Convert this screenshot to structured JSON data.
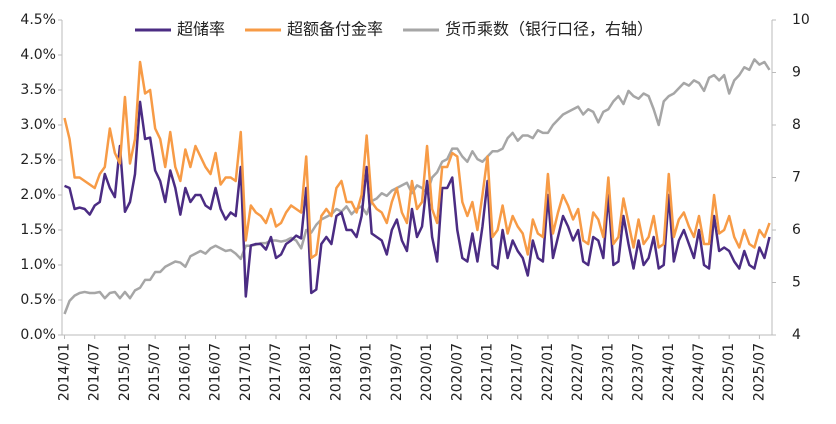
{
  "chart_data": {
    "type": "line",
    "categories": [
      "2014/01",
      null,
      null,
      null,
      null,
      null,
      "2014/07",
      null,
      null,
      null,
      null,
      null,
      "2015/01",
      null,
      null,
      null,
      null,
      null,
      "2015/07",
      null,
      null,
      null,
      null,
      null,
      "2016/01",
      null,
      null,
      null,
      null,
      null,
      "2016/07",
      null,
      null,
      null,
      null,
      null,
      "2017/01",
      null,
      null,
      null,
      null,
      null,
      "2017/07",
      null,
      null,
      null,
      null,
      null,
      "2018/01",
      null,
      null,
      null,
      null,
      null,
      "2018/07",
      null,
      null,
      null,
      null,
      null,
      "2019/01",
      null,
      null,
      null,
      null,
      null,
      "2019/07",
      null,
      null,
      null,
      null,
      null,
      "2020/01",
      null,
      null,
      null,
      null,
      null,
      "2020/07",
      null,
      null,
      null,
      null,
      null,
      "2021/01",
      null,
      null,
      null,
      null,
      null,
      "2021/07",
      null,
      null,
      null,
      null,
      null,
      "2022/01",
      null,
      null,
      null,
      null,
      null,
      "2022/07",
      null,
      null,
      null,
      null,
      null,
      "2023/01",
      null,
      null,
      null,
      null,
      null,
      "2023/07",
      null,
      null,
      null,
      null,
      null,
      "2024/01",
      null,
      null,
      null,
      null,
      null,
      "2024/07",
      null,
      null,
      null,
      null,
      null,
      "2025/01",
      null,
      null,
      null,
      null,
      null,
      "2025/07",
      null,
      null
    ],
    "series": [
      {
        "name": "超储率",
        "color": "#4b2c83",
        "values": [
          2.13,
          2.1,
          1.8,
          1.82,
          1.8,
          1.72,
          1.85,
          1.9,
          2.3,
          2.1,
          1.97,
          2.7,
          1.76,
          1.9,
          2.3,
          3.33,
          2.8,
          2.82,
          2.35,
          2.2,
          1.9,
          2.35,
          2.1,
          1.72,
          2.1,
          1.9,
          2.0,
          2.0,
          1.85,
          1.8,
          2.1,
          1.8,
          1.65,
          1.75,
          1.7,
          2.4,
          0.55,
          1.28,
          1.3,
          1.3,
          1.22,
          1.4,
          1.1,
          1.15,
          1.3,
          1.35,
          1.42,
          1.38,
          2.1,
          0.6,
          0.65,
          1.3,
          1.4,
          1.3,
          1.7,
          1.75,
          1.5,
          1.5,
          1.4,
          1.7,
          2.4,
          1.45,
          1.4,
          1.35,
          1.15,
          1.5,
          1.65,
          1.35,
          1.2,
          1.8,
          1.4,
          1.55,
          2.2,
          1.4,
          1.05,
          2.1,
          2.1,
          2.25,
          1.5,
          1.1,
          1.05,
          1.45,
          1.05,
          1.55,
          2.2,
          1.0,
          0.95,
          1.5,
          1.1,
          1.35,
          1.2,
          1.1,
          0.85,
          1.35,
          1.1,
          1.05,
          2.0,
          1.1,
          1.4,
          1.7,
          1.55,
          1.35,
          1.5,
          1.05,
          1.0,
          1.4,
          1.35,
          1.1,
          2.0,
          1.0,
          1.05,
          1.7,
          1.3,
          0.95,
          1.35,
          1.0,
          1.1,
          1.4,
          0.95,
          1.0,
          2.0,
          1.05,
          1.35,
          1.5,
          1.3,
          1.1,
          1.5,
          1.0,
          0.95,
          1.7,
          1.2,
          1.25,
          1.2,
          1.05,
          0.95,
          1.2,
          1.0,
          0.95,
          1.25,
          1.1,
          1.4
        ]
      },
      {
        "name": "超额备付金率",
        "color": "#f79b46",
        "values": [
          3.1,
          2.8,
          2.25,
          2.25,
          2.2,
          2.15,
          2.1,
          2.3,
          2.4,
          2.95,
          2.6,
          2.45,
          3.4,
          2.45,
          2.8,
          3.9,
          3.45,
          3.5,
          2.95,
          2.8,
          2.4,
          2.9,
          2.4,
          2.2,
          2.65,
          2.4,
          2.7,
          2.55,
          2.4,
          2.3,
          2.6,
          2.15,
          2.25,
          2.25,
          2.2,
          2.9,
          1.35,
          1.85,
          1.75,
          1.7,
          1.6,
          1.8,
          1.55,
          1.6,
          1.75,
          1.85,
          1.8,
          1.75,
          2.55,
          1.1,
          1.15,
          1.7,
          1.8,
          1.7,
          2.1,
          2.2,
          1.9,
          1.9,
          1.75,
          2.0,
          2.85,
          1.9,
          1.8,
          1.75,
          1.6,
          1.9,
          2.1,
          1.75,
          1.6,
          2.2,
          1.8,
          1.9,
          2.7,
          1.8,
          1.6,
          2.4,
          2.4,
          2.6,
          2.55,
          1.9,
          1.7,
          1.9,
          1.5,
          2.0,
          2.55,
          1.4,
          1.5,
          1.85,
          1.45,
          1.7,
          1.55,
          1.45,
          1.15,
          1.65,
          1.45,
          1.4,
          2.3,
          1.45,
          1.75,
          2.0,
          1.85,
          1.65,
          1.8,
          1.35,
          1.3,
          1.75,
          1.65,
          1.4,
          2.25,
          1.3,
          1.4,
          1.95,
          1.6,
          1.25,
          1.65,
          1.3,
          1.4,
          1.7,
          1.25,
          1.3,
          2.3,
          1.4,
          1.65,
          1.75,
          1.55,
          1.4,
          1.7,
          1.3,
          1.3,
          2.0,
          1.45,
          1.5,
          1.7,
          1.4,
          1.25,
          1.5,
          1.3,
          1.25,
          1.5,
          1.4,
          1.6
        ]
      },
      {
        "name": "货币乘数（银行口径，右轴）",
        "color": "#a6a6a6",
        "axis": "y2",
        "values": [
          4.4,
          4.65,
          4.75,
          4.8,
          4.82,
          4.8,
          4.8,
          4.82,
          4.7,
          4.8,
          4.82,
          4.7,
          4.82,
          4.7,
          4.85,
          4.9,
          5.05,
          5.05,
          5.2,
          5.2,
          5.3,
          5.35,
          5.4,
          5.38,
          5.3,
          5.5,
          5.55,
          5.6,
          5.55,
          5.65,
          5.7,
          5.65,
          5.6,
          5.62,
          5.55,
          5.45,
          5.7,
          5.7,
          5.72,
          5.75,
          5.75,
          5.8,
          5.8,
          5.78,
          5.8,
          5.85,
          5.8,
          5.65,
          6.0,
          5.95,
          6.1,
          6.2,
          6.25,
          6.3,
          6.4,
          6.35,
          6.45,
          6.3,
          6.4,
          6.45,
          6.3,
          6.55,
          6.6,
          6.7,
          6.65,
          6.75,
          6.8,
          6.85,
          6.9,
          6.7,
          6.85,
          6.8,
          6.7,
          7.0,
          7.1,
          7.3,
          7.35,
          7.55,
          7.55,
          7.4,
          7.3,
          7.5,
          7.35,
          7.3,
          7.4,
          7.5,
          7.5,
          7.55,
          7.75,
          7.85,
          7.7,
          7.8,
          7.8,
          7.75,
          7.9,
          7.85,
          7.85,
          8.0,
          8.1,
          8.2,
          8.25,
          8.3,
          8.35,
          8.2,
          8.3,
          8.25,
          8.05,
          8.25,
          8.3,
          8.45,
          8.55,
          8.4,
          8.65,
          8.55,
          8.5,
          8.6,
          8.55,
          8.3,
          8.0,
          8.45,
          8.55,
          8.6,
          8.7,
          8.8,
          8.75,
          8.85,
          8.8,
          8.65,
          8.9,
          8.95,
          8.85,
          8.95,
          8.6,
          8.85,
          8.95,
          9.1,
          9.05,
          9.25,
          9.15,
          9.2,
          9.05
        ]
      }
    ],
    "ylim": [
      0,
      4.5
    ],
    "yticks": [
      {
        "value": 0,
        "label": "0.0%"
      },
      {
        "value": 0.5,
        "label": "0.5%"
      },
      {
        "value": 1,
        "label": "1.0%"
      },
      {
        "value": 1.5,
        "label": "1.5%"
      },
      {
        "value": 2,
        "label": "2.0%"
      },
      {
        "value": 2.5,
        "label": "2.5%"
      },
      {
        "value": 3,
        "label": "3.0%"
      },
      {
        "value": 3.5,
        "label": "3.5%"
      },
      {
        "value": 4,
        "label": "4.0%"
      },
      {
        "value": 4.5,
        "label": "4.5%"
      }
    ],
    "y2lim": [
      4,
      10
    ],
    "y2ticks": [
      4,
      5,
      6,
      7,
      8,
      9,
      10
    ],
    "legend": "top"
  }
}
